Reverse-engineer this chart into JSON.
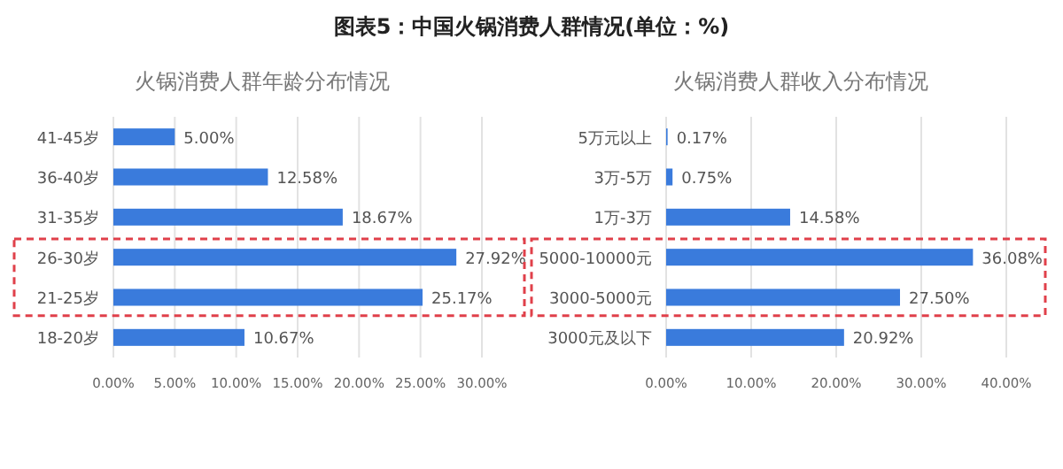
{
  "chart_data": [
    {
      "type": "bar",
      "orientation": "horizontal",
      "title": "火锅消费人群年龄分布情况",
      "annotations": [
        "图表5：中国火锅消费人群情况(单位：%)"
      ],
      "categories": [
        "41-45岁",
        "36-40岁",
        "31-35岁",
        "26-30岁",
        "21-25岁",
        "18-20岁"
      ],
      "values": [
        5.0,
        12.58,
        18.67,
        27.92,
        25.17,
        10.67
      ],
      "value_labels": [
        "5.00%",
        "12.58%",
        "18.67%",
        "27.92%",
        "25.17%",
        "10.67%"
      ],
      "color": "#3a7bdc",
      "xlim": [
        0,
        30
      ],
      "xticks": [
        {
          "value": 0,
          "label": "0.00%"
        },
        {
          "value": 5,
          "label": "5.00%"
        },
        {
          "value": 10,
          "label": "10.00%"
        },
        {
          "value": 15,
          "label": "15.00%"
        },
        {
          "value": 20,
          "label": "20.00%"
        },
        {
          "value": 25,
          "label": "25.00%"
        },
        {
          "value": 30,
          "label": "30.00%"
        }
      ],
      "grid": "x"
    },
    {
      "type": "bar",
      "orientation": "horizontal",
      "title": "火锅消费人群收入分布情况",
      "categories": [
        "5万元以上",
        "3万-5万",
        "1万-3万",
        "5000-10000元",
        "3000-5000元",
        "3000元及以下"
      ],
      "values": [
        0.17,
        0.75,
        14.58,
        36.08,
        27.5,
        20.92
      ],
      "value_labels": [
        "0.17%",
        "0.75%",
        "14.58%",
        "36.08%",
        "27.50%",
        "20.92%"
      ],
      "color": "#3a7bdc",
      "xlim": [
        0,
        40
      ],
      "xticks": [
        {
          "value": 0,
          "label": "0.00%"
        },
        {
          "value": 10,
          "label": "10.00%"
        },
        {
          "value": 20,
          "label": "20.00%"
        },
        {
          "value": 30,
          "label": "30.00%"
        },
        {
          "value": 40,
          "label": "40.00%"
        }
      ],
      "grid": "x"
    }
  ]
}
